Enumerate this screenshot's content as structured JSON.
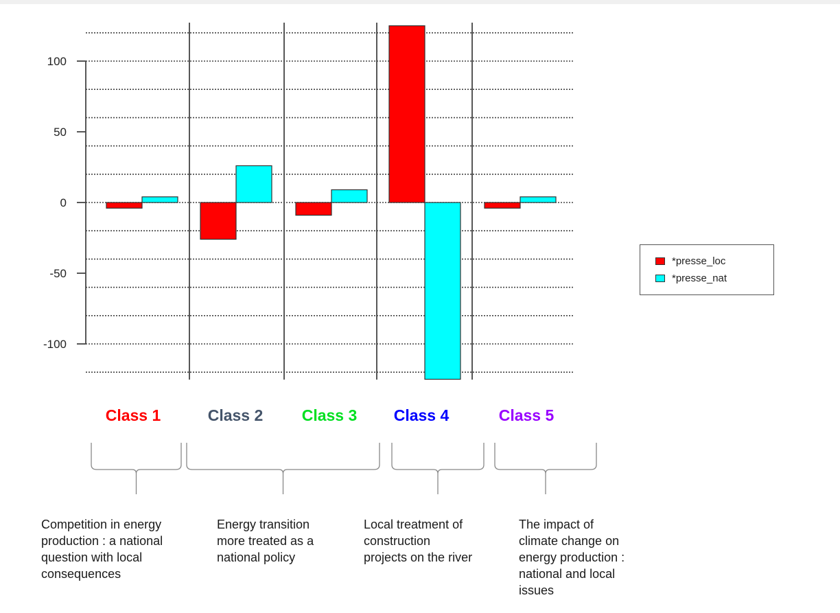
{
  "chart_data": {
    "type": "bar",
    "categories": [
      "Class 1",
      "Class 2",
      "Class 3",
      "Class 4",
      "Class 5"
    ],
    "series": [
      {
        "name": "*presse_loc",
        "color": "#ff0000",
        "values": [
          -4,
          -26,
          -9,
          130,
          -4
        ]
      },
      {
        "name": "*presse_nat",
        "color": "#00ffff",
        "values": [
          4,
          26,
          9,
          -130,
          4
        ]
      }
    ],
    "yticks": [
      100,
      50,
      0,
      -50,
      -100
    ],
    "ylim": [
      -125,
      125
    ],
    "grid": true,
    "legend_position": "right"
  },
  "class_labels": [
    {
      "text": "Class 1",
      "color": "#ff0000"
    },
    {
      "text": "Class 2",
      "color": "#44546a"
    },
    {
      "text": "Class 3",
      "color": "#00e020"
    },
    {
      "text": "Class 4",
      "color": "#0000ff"
    },
    {
      "text": "Class 5",
      "color": "#9900ff"
    }
  ],
  "descriptions": [
    "Competition in energy\nproduction : a national\nquestion with local\nconsequences",
    "Energy transition\nmore treated as a\nnational policy",
    "Local treatment of\nconstruction\nprojects on the river",
    "The impact of\nclimate change on\nenergy production :\nnational and local\nissues"
  ]
}
